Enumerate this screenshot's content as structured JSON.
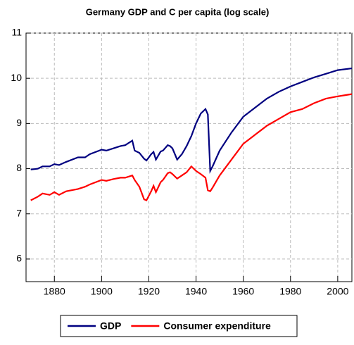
{
  "chart_data": {
    "type": "line",
    "title": "Germany GDP and C per capita (log scale)",
    "x": [
      1870,
      1873,
      1875,
      1878,
      1880,
      1882,
      1885,
      1890,
      1893,
      1895,
      1900,
      1902,
      1905,
      1908,
      1910,
      1913,
      1914,
      1916,
      1918,
      1919,
      1921,
      1922,
      1923,
      1925,
      1926,
      1928,
      1929,
      1930,
      1932,
      1934,
      1936,
      1938,
      1940,
      1942,
      1944,
      1945,
      1946,
      1947,
      1950,
      1955,
      1960,
      1965,
      1970,
      1975,
      1980,
      1985,
      1990,
      1995,
      2000,
      2006
    ],
    "series": [
      {
        "name": "GDP",
        "color": "#000080",
        "values": [
          7.98,
          8.0,
          8.05,
          8.05,
          8.1,
          8.08,
          8.15,
          8.25,
          8.25,
          8.32,
          8.42,
          8.4,
          8.45,
          8.5,
          8.52,
          8.62,
          8.4,
          8.35,
          8.22,
          8.18,
          8.32,
          8.37,
          8.2,
          8.38,
          8.4,
          8.52,
          8.5,
          8.45,
          8.2,
          8.32,
          8.5,
          8.72,
          9.0,
          9.22,
          9.32,
          9.2,
          7.95,
          8.05,
          8.4,
          8.8,
          9.15,
          9.35,
          9.55,
          9.7,
          9.82,
          9.92,
          10.02,
          10.1,
          10.18,
          10.22
        ]
      },
      {
        "name": "Consumer expenditure",
        "color": "#ff0000",
        "values": [
          7.3,
          7.38,
          7.45,
          7.42,
          7.48,
          7.42,
          7.5,
          7.55,
          7.6,
          7.65,
          7.75,
          7.73,
          7.77,
          7.8,
          7.8,
          7.85,
          7.75,
          7.6,
          7.32,
          7.3,
          7.5,
          7.62,
          7.48,
          7.7,
          7.75,
          7.9,
          7.92,
          7.88,
          7.78,
          7.85,
          7.92,
          8.05,
          7.95,
          7.88,
          7.8,
          7.52,
          7.5,
          7.58,
          7.85,
          8.2,
          8.55,
          8.75,
          8.95,
          9.1,
          9.25,
          9.32,
          9.45,
          9.55,
          9.6,
          9.65
        ]
      }
    ],
    "xlim": [
      1868,
      2006
    ],
    "xticks": [
      1880,
      1900,
      1920,
      1940,
      1960,
      1980,
      2000
    ],
    "ylim": [
      5.5,
      11
    ],
    "yticks": [
      6,
      7,
      8,
      9,
      10,
      11
    ],
    "grid": true
  }
}
